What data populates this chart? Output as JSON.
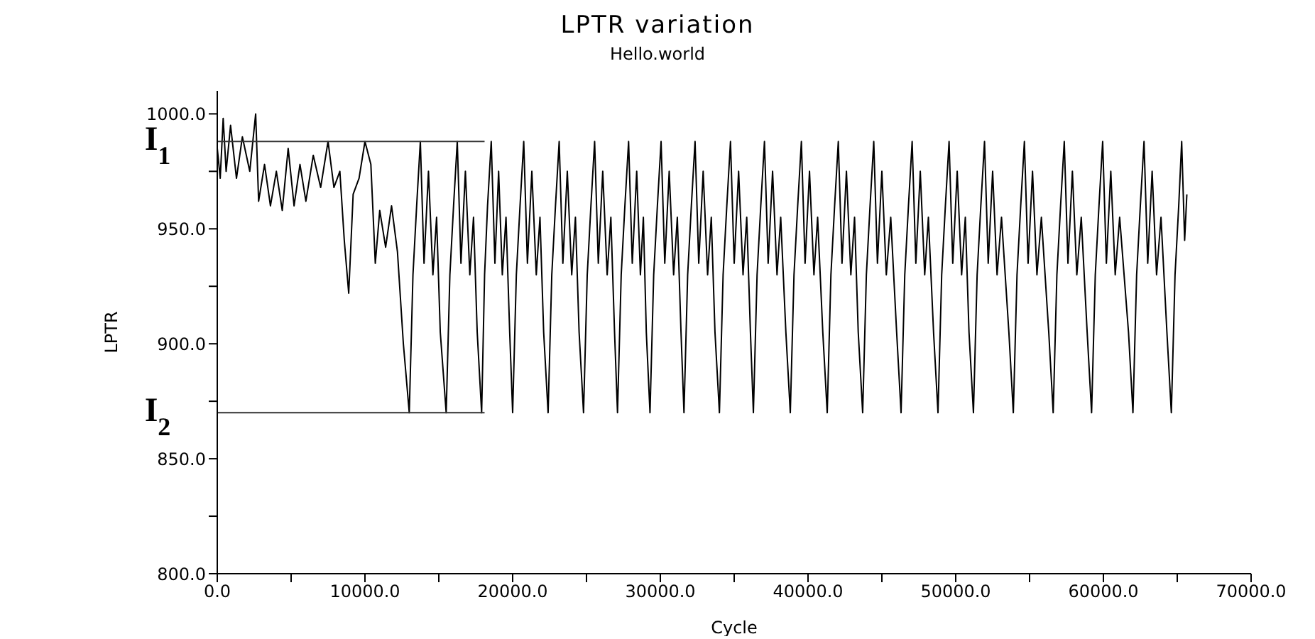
{
  "chart_data": {
    "type": "line",
    "title": "LPTR variation",
    "subtitle": "Hello.world",
    "xlabel": "Cycle",
    "ylabel": "LPTR",
    "xlim": [
      0,
      70000
    ],
    "xticks": [
      {
        "value": 0,
        "label": "0.0"
      },
      {
        "value": 5000,
        "label": null
      },
      {
        "value": 10000,
        "label": "10000.0"
      },
      {
        "value": 15000,
        "label": null
      },
      {
        "value": 20000,
        "label": "20000.0"
      },
      {
        "value": 25000,
        "label": null
      },
      {
        "value": 30000,
        "label": "30000.0"
      },
      {
        "value": 35000,
        "label": null
      },
      {
        "value": 40000,
        "label": "40000.0"
      },
      {
        "value": 45000,
        "label": null
      },
      {
        "value": 50000,
        "label": "50000.0"
      },
      {
        "value": 55000,
        "label": null
      },
      {
        "value": 60000,
        "label": "60000.0"
      },
      {
        "value": 65000,
        "label": null
      },
      {
        "value": 70000,
        "label": "70000.0"
      }
    ],
    "ylim": [
      800,
      1010
    ],
    "yticks": [
      {
        "value": 800,
        "label": "800.0"
      },
      {
        "value": 825,
        "label": null
      },
      {
        "value": 850,
        "label": "850.0"
      },
      {
        "value": 875,
        "label": null
      },
      {
        "value": 900,
        "label": "900.0"
      },
      {
        "value": 925,
        "label": null
      },
      {
        "value": 950,
        "label": "950.0"
      },
      {
        "value": 975,
        "label": null
      },
      {
        "value": 1000,
        "label": "1000.0"
      }
    ],
    "marker": "none",
    "line_style": "solid",
    "series": [
      {
        "color": "#000000",
        "x": [
          0,
          200,
          400,
          600,
          900,
          1300,
          1700,
          2200,
          2600,
          2800,
          3200,
          3600,
          4000,
          4400,
          4800,
          5200,
          5600,
          6000,
          6500,
          7000,
          7500,
          7900,
          8300,
          8600,
          8900,
          9200,
          9600,
          10000,
          10400,
          10700,
          11000,
          11400,
          11800,
          12200,
          12600,
          13000,
          13250,
          13500,
          13750,
          14000,
          14300,
          14600,
          14850,
          15100,
          15500,
          15750,
          16000,
          16250,
          16500,
          16800,
          17100,
          17350,
          17600,
          17900,
          18100,
          18300,
          18550,
          18800,
          19050,
          19300,
          19550,
          19800,
          20000,
          20250,
          20500,
          20750,
          21000,
          21300,
          21600,
          21850,
          22100,
          22400,
          22650,
          22900,
          23150,
          23400,
          23700,
          24000,
          24250,
          24500,
          24800,
          25050,
          25300,
          25550,
          25800,
          26100,
          26400,
          26650,
          26900,
          27100,
          27350,
          27600,
          27850,
          28100,
          28400,
          28650,
          28850,
          29050,
          29300,
          29550,
          29800,
          30050,
          30300,
          30600,
          30900,
          31150,
          31400,
          31600,
          31850,
          32100,
          32350,
          32600,
          32900,
          33200,
          33450,
          33700,
          34000,
          34250,
          34500,
          34750,
          35000,
          35300,
          35600,
          35850,
          36100,
          36300,
          36550,
          36800,
          37050,
          37300,
          37600,
          37900,
          38150,
          38500,
          38800,
          39050,
          39300,
          39550,
          39800,
          40100,
          40400,
          40650,
          41000,
          41300,
          41550,
          41800,
          42050,
          42300,
          42600,
          42900,
          43150,
          43400,
          43700,
          43950,
          44200,
          44450,
          44700,
          45000,
          45300,
          45600,
          46000,
          46300,
          46550,
          46800,
          47050,
          47300,
          47600,
          47900,
          48150,
          48500,
          48800,
          49050,
          49300,
          49550,
          49800,
          50100,
          50400,
          50650,
          50900,
          51200,
          51450,
          51700,
          51950,
          52200,
          52500,
          52800,
          53100,
          53600,
          53900,
          54150,
          54400,
          54650,
          54900,
          55200,
          55500,
          55800,
          56300,
          56600,
          56850,
          57100,
          57350,
          57600,
          57900,
          58200,
          58500,
          58900,
          59200,
          59450,
          59700,
          59950,
          60200,
          60500,
          60800,
          61100,
          61700,
          62000,
          62250,
          62500,
          62750,
          63000,
          63300,
          63600,
          63900,
          64300,
          64600,
          64850,
          65100,
          65300,
          65500,
          65650
        ],
        "values": [
          985,
          972,
          998,
          975,
          995,
          972,
          990,
          975,
          1000,
          962,
          978,
          960,
          975,
          958,
          985,
          960,
          978,
          962,
          982,
          968,
          988,
          968,
          975,
          945,
          922,
          965,
          972,
          988,
          978,
          935,
          958,
          942,
          960,
          940,
          900,
          870,
          930,
          960,
          988,
          935,
          975,
          930,
          955,
          905,
          870,
          930,
          960,
          988,
          935,
          975,
          930,
          955,
          905,
          870,
          930,
          960,
          988,
          935,
          975,
          930,
          955,
          905,
          870,
          930,
          960,
          988,
          935,
          975,
          930,
          955,
          905,
          870,
          930,
          960,
          988,
          935,
          975,
          930,
          955,
          905,
          870,
          930,
          960,
          988,
          935,
          975,
          930,
          955,
          905,
          870,
          930,
          960,
          988,
          935,
          975,
          930,
          955,
          905,
          870,
          930,
          960,
          988,
          935,
          975,
          930,
          955,
          905,
          870,
          930,
          960,
          988,
          935,
          975,
          930,
          955,
          905,
          870,
          930,
          960,
          988,
          935,
          975,
          930,
          955,
          905,
          870,
          930,
          960,
          988,
          935,
          975,
          930,
          955,
          905,
          870,
          930,
          960,
          988,
          935,
          975,
          930,
          955,
          905,
          870,
          930,
          960,
          988,
          935,
          975,
          930,
          955,
          905,
          870,
          930,
          960,
          988,
          935,
          975,
          930,
          955,
          905,
          870,
          930,
          960,
          988,
          935,
          975,
          930,
          955,
          905,
          870,
          930,
          960,
          988,
          935,
          975,
          930,
          955,
          905,
          870,
          930,
          960,
          988,
          935,
          975,
          930,
          955,
          905,
          870,
          930,
          960,
          988,
          935,
          975,
          930,
          955,
          905,
          870,
          930,
          960,
          988,
          935,
          975,
          930,
          955,
          905,
          870,
          930,
          960,
          988,
          935,
          975,
          930,
          955,
          905,
          870,
          930,
          960,
          988,
          935,
          975,
          930,
          955,
          905,
          870,
          930,
          960,
          988,
          945,
          965
        ]
      },
      {
        "color": "#333333",
        "x": [
          0,
          18100
        ],
        "values": [
          988,
          988
        ]
      },
      {
        "color": "#333333",
        "x": [
          0,
          18100
        ],
        "values": [
          870,
          870
        ]
      }
    ],
    "annotations": [
      {
        "text": "I$_{1}$",
        "x": 0,
        "y": 988
      },
      {
        "text": "I$_{2}$",
        "x": 0,
        "y": 870
      }
    ]
  }
}
